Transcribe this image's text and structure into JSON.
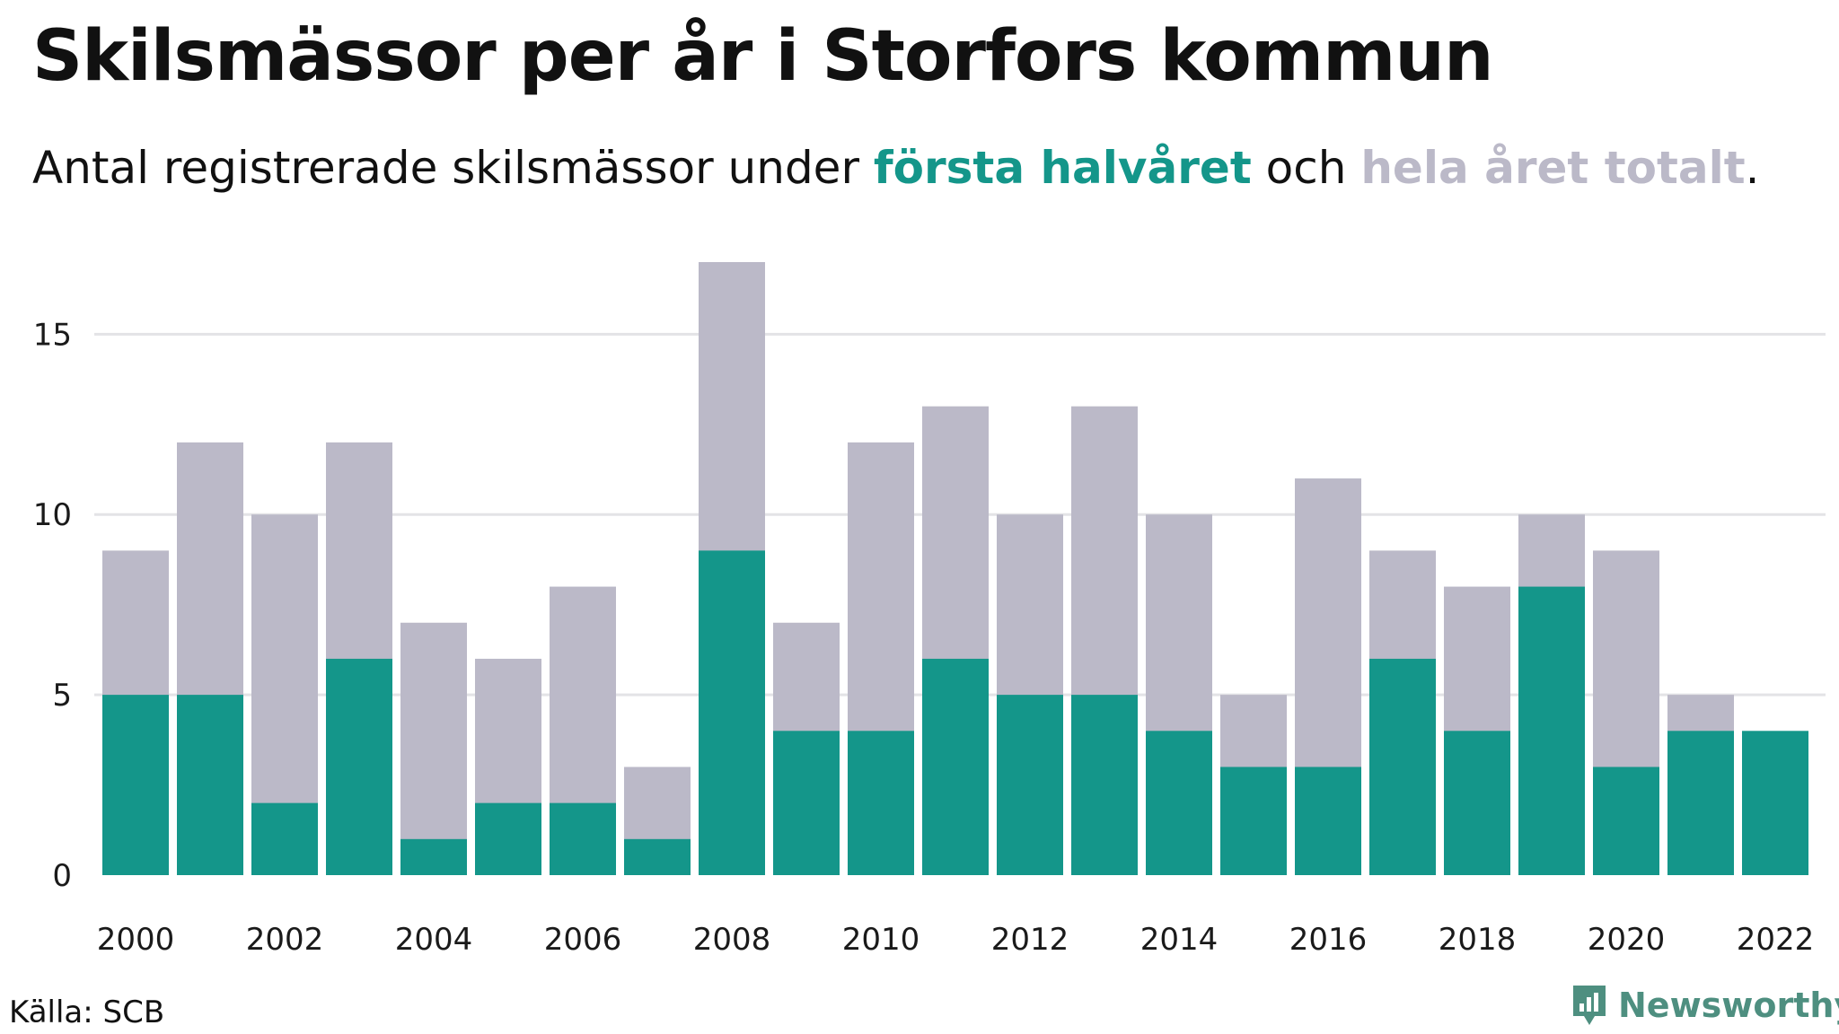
{
  "title": "Skilsmässor per år i Storfors kommun",
  "subtitle": {
    "prefix": "Antal registrerade skilsmässor under ",
    "highlight1": "första halvåret",
    "middle": " och ",
    "highlight2": "hela året totalt",
    "suffix": "."
  },
  "source": "Källa: SCB",
  "brand": {
    "name": "Newsworthy",
    "icon": "newsworthy-logo-icon",
    "color": "#4e8f80"
  },
  "colors": {
    "first_half": "#14968a",
    "total": "#bbb9c8",
    "grid": "#e3e3e6"
  },
  "chart_data": {
    "type": "bar",
    "stacked": "overlay",
    "categories": [
      "2000",
      "2001",
      "2002",
      "2003",
      "2004",
      "2005",
      "2006",
      "2007",
      "2008",
      "2009",
      "2010",
      "2011",
      "2012",
      "2013",
      "2014",
      "2015",
      "2016",
      "2017",
      "2018",
      "2019",
      "2020",
      "2021",
      "2022"
    ],
    "x_tick_labels": [
      "2000",
      "2002",
      "2004",
      "2006",
      "2008",
      "2010",
      "2012",
      "2014",
      "2016",
      "2018",
      "2020",
      "2022"
    ],
    "series": [
      {
        "name": "hela året totalt",
        "values": [
          9,
          12,
          10,
          12,
          7,
          6,
          8,
          3,
          17,
          7,
          12,
          13,
          10,
          13,
          10,
          5,
          11,
          9,
          8,
          10,
          9,
          5,
          null
        ]
      },
      {
        "name": "första halvåret",
        "values": [
          5,
          5,
          2,
          6,
          1,
          2,
          2,
          1,
          9,
          4,
          4,
          6,
          5,
          5,
          4,
          3,
          3,
          6,
          4,
          8,
          3,
          4,
          4
        ]
      }
    ],
    "y_ticks": [
      0,
      5,
      10,
      15
    ],
    "ylim": [
      0,
      17
    ],
    "grid": true,
    "legend": "in subtitle"
  }
}
